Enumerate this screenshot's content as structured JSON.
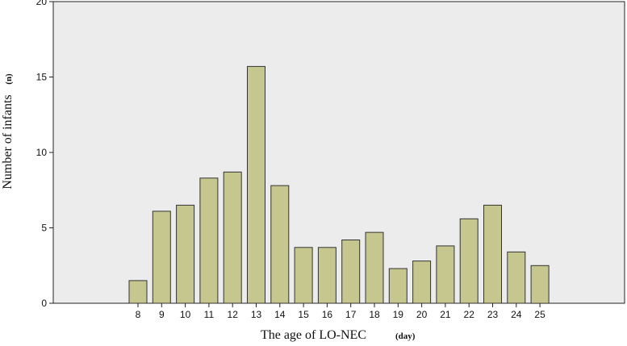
{
  "chart_data": {
    "type": "bar",
    "categories": [
      "8",
      "9",
      "10",
      "11",
      "12",
      "13",
      "14",
      "15",
      "16",
      "17",
      "18",
      "19",
      "20",
      "21",
      "22",
      "23",
      "24",
      "25"
    ],
    "values": [
      1.5,
      6.1,
      6.5,
      8.3,
      8.7,
      15.7,
      7.8,
      3.7,
      3.7,
      4.2,
      4.7,
      2.3,
      2.8,
      3.8,
      5.6,
      6.5,
      3.4,
      2.5
    ],
    "xlabel": "The age of LO-NEC",
    "xlabel_unit": "(day)",
    "ylabel": "Number of infants",
    "ylabel_unit": "(n)",
    "ylim": [
      0,
      20
    ],
    "yticks": [
      "0",
      "5",
      "10",
      "15",
      "20"
    ],
    "grid": false,
    "colors": {
      "plot_background": "#ececec",
      "bar_fill": "#c6c68f",
      "bar_stroke": "#333333"
    }
  }
}
